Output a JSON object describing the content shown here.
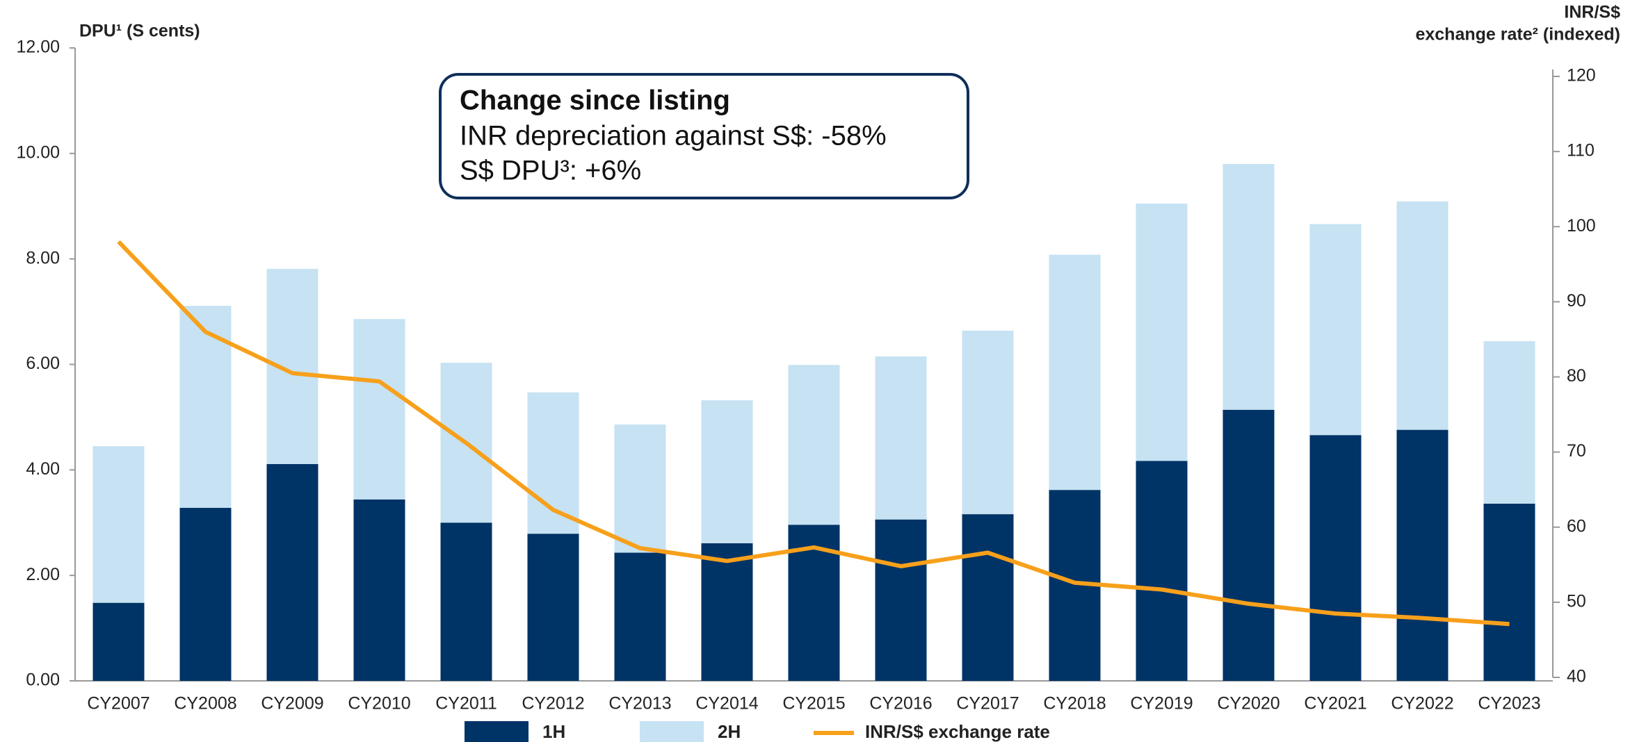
{
  "chart_data": {
    "type": "bar",
    "stacked": true,
    "y_label": "DPU¹ (S cents)",
    "y2_label_line1": "INR/S$",
    "y2_label_line2": "exchange rate² (indexed)",
    "annotation": {
      "title": "Change since listing",
      "lines": [
        "INR depreciation against S$: -58%",
        "S$ DPU³: +6%"
      ]
    },
    "categories": [
      "CY2007",
      "CY2008",
      "CY2009",
      "CY2010",
      "CY2011",
      "CY2012",
      "CY2013",
      "CY2014",
      "CY2015",
      "CY2016",
      "CY2017",
      "CY2018",
      "CY2019",
      "CY2020",
      "CY2021",
      "CY2022",
      "CY2023"
    ],
    "series": [
      {
        "name": "1H",
        "color": "#003366",
        "values": [
          1.48,
          3.28,
          4.11,
          3.44,
          3.0,
          2.79,
          2.43,
          2.61,
          2.96,
          3.06,
          3.16,
          3.62,
          4.17,
          5.14,
          4.66,
          4.76,
          3.36
        ]
      },
      {
        "name": "2H",
        "color": "#c6e2f3",
        "values": [
          2.97,
          3.83,
          3.7,
          3.42,
          3.03,
          2.68,
          2.43,
          2.71,
          3.03,
          3.09,
          3.48,
          4.46,
          4.88,
          4.66,
          4.0,
          4.33,
          3.08
        ]
      },
      {
        "name": "INR/S$ exchange rate",
        "color": "#f7a01b",
        "type": "line",
        "axis": "y2",
        "values": [
          98.0,
          86.0,
          80.5,
          79.4,
          71.2,
          62.3,
          57.2,
          55.5,
          57.3,
          54.8,
          56.6,
          52.6,
          51.7,
          49.8,
          48.5,
          47.9,
          47.1
        ]
      }
    ],
    "ylim": [
      0,
      12
    ],
    "yticks": [
      {
        "value": 0,
        "label": "0.00"
      },
      {
        "value": 2,
        "label": "2.00"
      },
      {
        "value": 4,
        "label": "4.00"
      },
      {
        "value": 6,
        "label": "6.00"
      },
      {
        "value": 8,
        "label": "8.00"
      },
      {
        "value": 10,
        "label": "10.00"
      },
      {
        "value": 12,
        "label": "12.00"
      }
    ],
    "y2lim": [
      40,
      120
    ],
    "y2ticks": [
      40,
      50,
      60,
      70,
      80,
      90,
      100,
      110,
      120
    ],
    "grid": false,
    "legend": "bottom"
  }
}
